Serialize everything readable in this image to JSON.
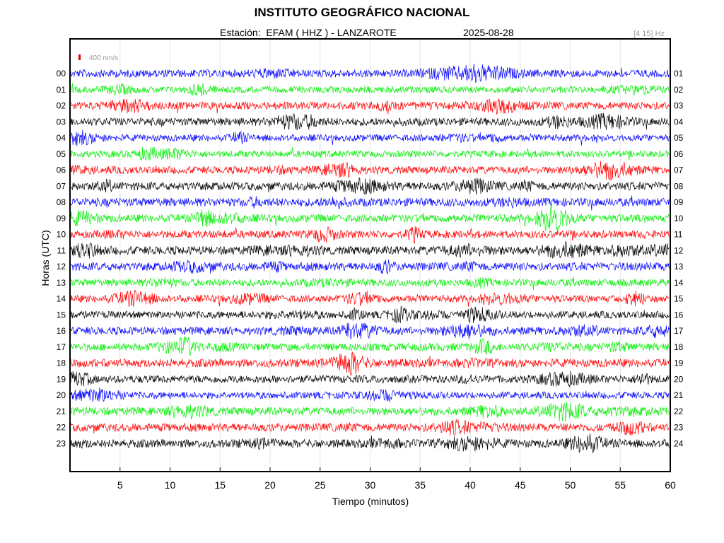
{
  "header": {
    "title": "INSTITUTO GEOGRÁFICO NACIONAL",
    "station_line": "Estación:  EFAM ( HHZ ) - LANZAROTE",
    "date": "2025-08-28",
    "band": "[4 15] Hz"
  },
  "chart_data": {
    "type": "line",
    "subtype": "helicorder",
    "title": "INSTITUTO GEOGRÁFICO NACIONAL",
    "xlabel": "Tiempo (minutos)",
    "ylabel": "Horas (UTC)",
    "xlim": [
      0,
      60
    ],
    "x_ticks": [
      5,
      10,
      15,
      20,
      25,
      30,
      35,
      40,
      45,
      50,
      55,
      60
    ],
    "grid": true,
    "scale_bar": {
      "label": "400 nm/s",
      "color": "#e00000"
    },
    "trace_colors": [
      "#0000ff",
      "#00ee00",
      "#ff0000",
      "#000000"
    ],
    "left_hour_labels": [
      "00",
      "01",
      "02",
      "03",
      "04",
      "05",
      "06",
      "07",
      "08",
      "09",
      "10",
      "11",
      "12",
      "13",
      "14",
      "15",
      "16",
      "17",
      "18",
      "19",
      "20",
      "21",
      "22",
      "23"
    ],
    "right_hour_labels": [
      "01",
      "02",
      "03",
      "04",
      "05",
      "06",
      "07",
      "08",
      "09",
      "10",
      "11",
      "12",
      "13",
      "14",
      "15",
      "16",
      "17",
      "18",
      "19",
      "20",
      "21",
      "22",
      "23",
      "24"
    ]
  }
}
